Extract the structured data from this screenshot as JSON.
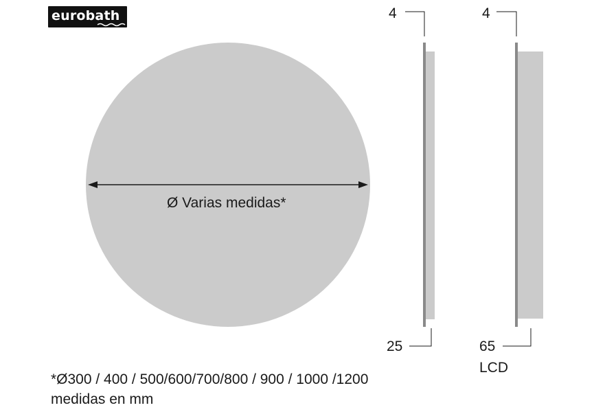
{
  "logo": {
    "text": "eurobath"
  },
  "front_view": {
    "diameter_label": "Ø Varias medidas*"
  },
  "side_view_left": {
    "top_dimension": "4",
    "bottom_dimension": "25"
  },
  "side_view_right": {
    "top_dimension": "4",
    "bottom_dimension": "65",
    "bottom_caption": "LCD"
  },
  "footnote": {
    "sizes": "*Ø300 / 400 / 500/600/700/800 / 900 / 1000 /1200",
    "units": "medidas en mm"
  },
  "colors": {
    "panel": "#cbcbcb",
    "edge": "#8a8a8a",
    "ink": "#1a1a1a",
    "logo_bg": "#111111"
  }
}
